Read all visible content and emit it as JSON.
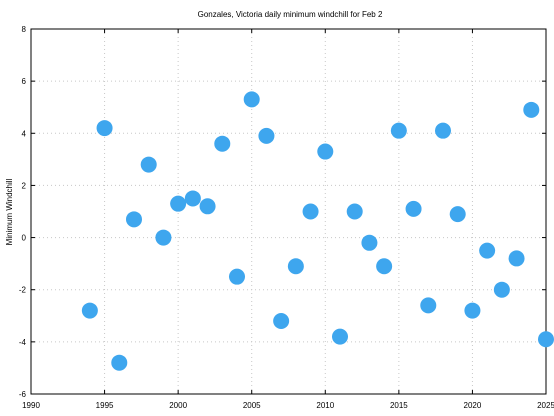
{
  "chart_data": {
    "type": "scatter",
    "title": "Gonzales, Victoria daily minimum windchill for Feb 2",
    "xlabel": "",
    "ylabel": "Minimum Windchill",
    "xlim": [
      1990,
      2025
    ],
    "ylim": [
      -6,
      8
    ],
    "xticks": [
      1990,
      1995,
      2000,
      2005,
      2010,
      2015,
      2020,
      2025
    ],
    "yticks": [
      -6,
      -4,
      -2,
      0,
      2,
      4,
      6,
      8
    ],
    "grid": true,
    "legend": "none",
    "marker_color": "#3ea6ee",
    "series": [
      {
        "x": [
          1994,
          1995,
          1996,
          1997,
          1998,
          1999,
          2000,
          2001,
          2002,
          2003,
          2004,
          2005,
          2006,
          2007,
          2008,
          2009,
          2010,
          2011,
          2012,
          2013,
          2014,
          2015,
          2016,
          2017,
          2018,
          2019,
          2020,
          2021,
          2022,
          2023,
          2024,
          2025
        ],
        "y": [
          -2.8,
          4.2,
          -4.8,
          0.7,
          2.8,
          0.0,
          1.3,
          1.5,
          1.2,
          3.6,
          -1.5,
          5.3,
          3.9,
          -3.2,
          -1.1,
          1.0,
          3.3,
          -3.8,
          1.0,
          -0.2,
          -1.1,
          4.1,
          1.1,
          -2.6,
          4.1,
          0.9,
          -2.8,
          -0.5,
          -2.0,
          -0.8,
          4.9,
          -3.9
        ]
      }
    ]
  }
}
